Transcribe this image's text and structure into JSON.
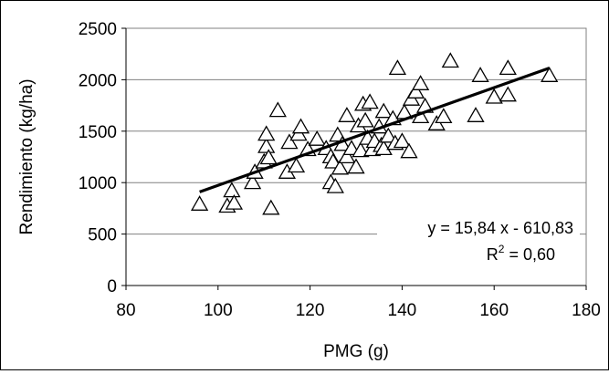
{
  "chart_data": {
    "type": "scatter",
    "xlabel": "PMG (g)",
    "ylabel": "Rendimiento (kg/ha)",
    "xlim": [
      80,
      180
    ],
    "ylim": [
      0,
      2500
    ],
    "x_ticks": [
      "80",
      "100",
      "120",
      "140",
      "160",
      "180"
    ],
    "y_ticks": [
      "0",
      "500",
      "1000",
      "1500",
      "2000",
      "2500"
    ],
    "grid": "horizontal",
    "marker": "open-triangle",
    "trendline": {
      "slope": 15.84,
      "intercept": -610.83,
      "x_range": [
        96,
        172
      ],
      "equation_label": "y = 15,84 x - 610,83",
      "r2_prefix": "R",
      "r2_sup": "2",
      "r2_value": " = 0,60"
    },
    "points": [
      [
        96,
        790
      ],
      [
        102,
        770
      ],
      [
        103,
        920
      ],
      [
        103.5,
        800
      ],
      [
        107.5,
        1000
      ],
      [
        108,
        1100
      ],
      [
        110,
        1200
      ],
      [
        110.5,
        1350
      ],
      [
        110.5,
        1470
      ],
      [
        111,
        1240
      ],
      [
        111.5,
        750
      ],
      [
        113,
        1700
      ],
      [
        115,
        1100
      ],
      [
        115.5,
        1390
      ],
      [
        117,
        1160
      ],
      [
        117.5,
        1470
      ],
      [
        118,
        1540
      ],
      [
        119.5,
        1320
      ],
      [
        121.5,
        1420
      ],
      [
        123.5,
        1330
      ],
      [
        124.5,
        1250
      ],
      [
        124.5,
        1000
      ],
      [
        125,
        1200
      ],
      [
        125.5,
        960
      ],
      [
        126,
        1460
      ],
      [
        126.5,
        1140
      ],
      [
        127,
        1370
      ],
      [
        128,
        1650
      ],
      [
        128,
        1250
      ],
      [
        129,
        1330
      ],
      [
        130,
        1150
      ],
      [
        130.5,
        1550
      ],
      [
        131,
        1310
      ],
      [
        131.5,
        1760
      ],
      [
        132,
        1600
      ],
      [
        132.5,
        1430
      ],
      [
        133,
        1780
      ],
      [
        133.5,
        1320
      ],
      [
        134,
        1400
      ],
      [
        135,
        1540
      ],
      [
        135.5,
        1360
      ],
      [
        136,
        1690
      ],
      [
        136,
        1330
      ],
      [
        137,
        1450
      ],
      [
        138,
        1620
      ],
      [
        138.5,
        1380
      ],
      [
        139,
        2110
      ],
      [
        140,
        1400
      ],
      [
        140.5,
        1680
      ],
      [
        141.5,
        1300
      ],
      [
        142,
        1810
      ],
      [
        143,
        1880
      ],
      [
        144,
        1960
      ],
      [
        144,
        1640
      ],
      [
        145,
        1740
      ],
      [
        147.5,
        1570
      ],
      [
        149,
        1640
      ],
      [
        150.5,
        2180
      ],
      [
        156,
        1650
      ],
      [
        157,
        2040
      ],
      [
        160,
        1830
      ],
      [
        163,
        2110
      ],
      [
        163,
        1850
      ],
      [
        172,
        2040
      ]
    ]
  }
}
